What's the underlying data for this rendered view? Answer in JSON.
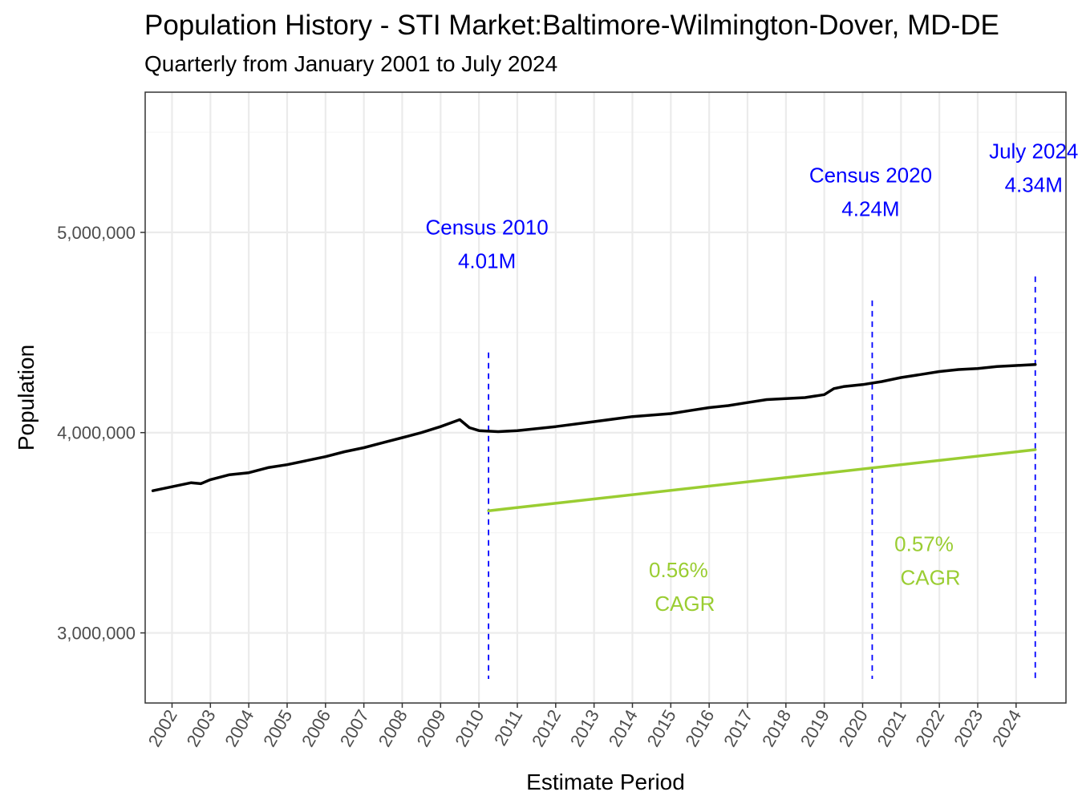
{
  "chart_data": {
    "type": "line",
    "title": "Population History - STI Market:Baltimore-Wilmington-Dover, MD-DE",
    "subtitle": "Quarterly from January 2001 to July 2024",
    "xlabel": "Estimate Period",
    "ylabel": "Population",
    "xlim": [
      2001.3,
      2025.3
    ],
    "ylim": [
      2650000,
      5700000
    ],
    "y_ticks": [
      3000000,
      4000000,
      5000000
    ],
    "y_tick_labels": [
      "3,000,000",
      "4,000,000",
      "5,000,000"
    ],
    "x_ticks": [
      2002,
      2003,
      2004,
      2005,
      2006,
      2007,
      2008,
      2009,
      2010,
      2011,
      2012,
      2013,
      2014,
      2015,
      2016,
      2017,
      2018,
      2019,
      2020,
      2021,
      2022,
      2023,
      2024
    ],
    "grid": true,
    "series": [
      {
        "name": "Population",
        "color": "#000000",
        "x": [
          2001.5,
          2002.0,
          2002.5,
          2002.75,
          2003.0,
          2003.5,
          2004.0,
          2004.5,
          2005.0,
          2005.5,
          2006.0,
          2006.5,
          2007.0,
          2007.5,
          2008.0,
          2008.5,
          2009.0,
          2009.5,
          2009.75,
          2010.0,
          2010.5,
          2011.0,
          2012.0,
          2013.0,
          2014.0,
          2015.0,
          2015.5,
          2016.0,
          2016.5,
          2017.0,
          2017.5,
          2018.0,
          2018.5,
          2019.0,
          2019.25,
          2019.5,
          2020.0,
          2020.5,
          2021.0,
          2021.5,
          2022.0,
          2022.5,
          2023.0,
          2023.5,
          2024.0,
          2024.5
        ],
        "values": [
          3710000,
          3730000,
          3750000,
          3745000,
          3765000,
          3790000,
          3800000,
          3825000,
          3840000,
          3860000,
          3880000,
          3905000,
          3925000,
          3950000,
          3975000,
          4000000,
          4030000,
          4065000,
          4025000,
          4010000,
          4005000,
          4010000,
          4030000,
          4055000,
          4080000,
          4095000,
          4110000,
          4125000,
          4135000,
          4150000,
          4165000,
          4170000,
          4175000,
          4190000,
          4220000,
          4230000,
          4240000,
          4255000,
          4275000,
          4290000,
          4305000,
          4315000,
          4320000,
          4330000,
          4335000,
          4340000
        ]
      },
      {
        "name": "CAGR trend",
        "color": "#9acd32",
        "x": [
          2010.25,
          2024.5
        ],
        "values": [
          3610000,
          3915000
        ]
      }
    ],
    "reference_lines": [
      {
        "x": 2010.25,
        "label_line1": "Census 2010",
        "label_line2": "4.01M",
        "y_top": 4400000,
        "label_y": 4990000
      },
      {
        "x": 2020.25,
        "label_line1": "Census 2020",
        "label_line2": "4.24M",
        "y_top": 4660000,
        "label_y": 5250000
      },
      {
        "x": 2024.5,
        "label_line1": "July 2024",
        "label_line2": "4.34M",
        "y_top": 4780000,
        "label_y": 5370000
      }
    ],
    "cagr_annotations": [
      {
        "line1": "0.56%",
        "line2": "CAGR",
        "x": 2015.2,
        "y": 3150000
      },
      {
        "line1": "0.57%",
        "line2": "CAGR",
        "x": 2021.6,
        "y": 3280000
      }
    ],
    "colors": {
      "census": "#0000ff",
      "cagr": "#9acd32",
      "population": "#000000",
      "grid": "#ebebeb",
      "grid_minor": "#f5f5f5"
    }
  }
}
